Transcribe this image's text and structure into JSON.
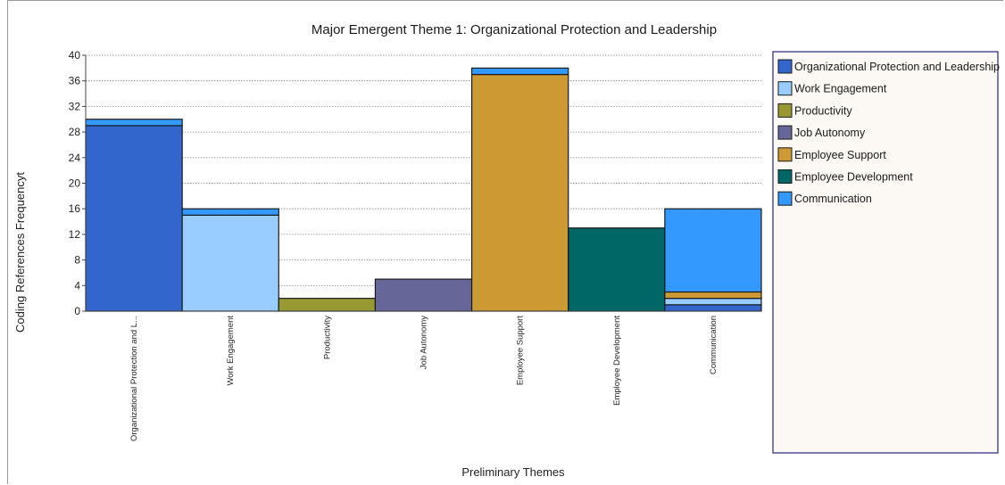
{
  "chart_data": {
    "type": "bar",
    "stacked": true,
    "title": "Major Emergent Theme 1: Organizational Protection and Leadership",
    "xlabel": "Preliminary Themes",
    "ylabel": "Coding References Frequencyt",
    "ylim": [
      0,
      40
    ],
    "yticks": [
      "0",
      "4",
      "8",
      "12",
      "16",
      "20",
      "24",
      "28",
      "32",
      "36",
      "40"
    ],
    "grid": true,
    "legend_position": "right",
    "categories": [
      "Organizational Protection and L...",
      "Work Engagement",
      "Productivity",
      "Job Autonomy",
      "Employee Support",
      "Employee Development",
      "Communication"
    ],
    "series": [
      {
        "name": "Organizational Protection and Leadership",
        "color": "#3366CC",
        "values": [
          29,
          0,
          0,
          0,
          0,
          0,
          1
        ]
      },
      {
        "name": "Work Engagement",
        "color": "#99CCFF",
        "values": [
          0,
          15,
          0,
          0,
          0,
          0,
          1
        ]
      },
      {
        "name": "Productivity",
        "color": "#999933",
        "values": [
          0,
          0,
          2,
          0,
          0,
          0,
          0
        ]
      },
      {
        "name": "Job Autonomy",
        "color": "#666699",
        "values": [
          0,
          0,
          0,
          5,
          0,
          0,
          0
        ]
      },
      {
        "name": "Employee Support",
        "color": "#CC9933",
        "values": [
          0,
          0,
          0,
          0,
          37,
          0,
          1
        ]
      },
      {
        "name": "Employee Development",
        "color": "#006666",
        "values": [
          0,
          0,
          0,
          0,
          0,
          13,
          0
        ]
      },
      {
        "name": "Communication",
        "color": "#3399FF",
        "values": [
          1,
          1,
          0,
          0,
          1,
          0,
          13
        ]
      }
    ]
  }
}
